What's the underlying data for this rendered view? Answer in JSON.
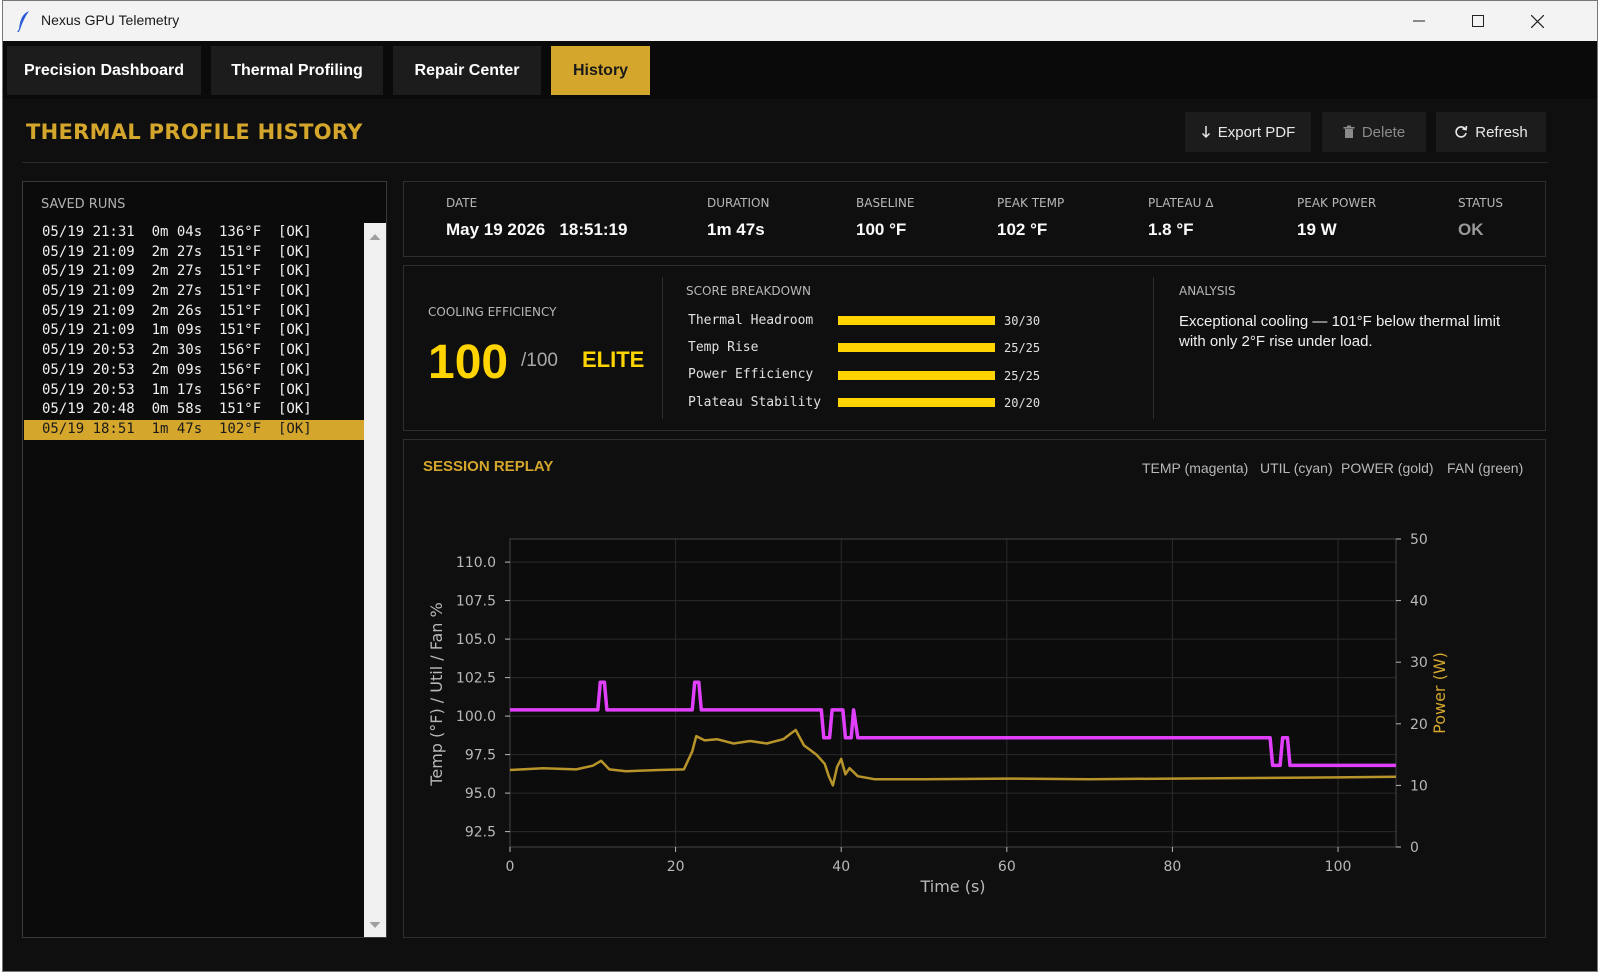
{
  "window": {
    "title": "Nexus GPU Telemetry"
  },
  "tabs": [
    {
      "label": "Precision Dashboard"
    },
    {
      "label": "Thermal Profiling"
    },
    {
      "label": "Repair Center"
    },
    {
      "label": "History",
      "active": true
    }
  ],
  "page": {
    "title": "THERMAL PROFILE HISTORY"
  },
  "header_buttons": {
    "export": {
      "icon": "download-arrow-icon",
      "label": "Export PDF"
    },
    "delete": {
      "icon": "trash-icon",
      "label": "Delete",
      "disabled": true
    },
    "refresh": {
      "icon": "refresh-icon",
      "label": "Refresh"
    }
  },
  "saved_runs": {
    "label": "SAVED RUNS",
    "rows": [
      "05/19 21:31  0m 04s  136°F  [OK]",
      "05/19 21:09  2m 27s  151°F  [OK]",
      "05/19 21:09  2m 27s  151°F  [OK]",
      "05/19 21:09  2m 27s  151°F  [OK]",
      "05/19 21:09  2m 26s  151°F  [OK]",
      "05/19 21:09  1m 09s  151°F  [OK]",
      "05/19 20:53  2m 30s  156°F  [OK]",
      "05/19 20:53  2m 09s  156°F  [OK]",
      "05/19 20:53  1m 17s  156°F  [OK]",
      "05/19 20:48  0m 58s  151°F  [OK]",
      "05/19 18:51  1m 47s  102°F  [OK]"
    ],
    "selected_index": 10
  },
  "summary": {
    "date": {
      "label": "DATE",
      "value": "May 19 2026   18:51:19"
    },
    "duration": {
      "label": "DURATION",
      "value": "1m 47s"
    },
    "baseline": {
      "label": "BASELINE",
      "value": "100 °F"
    },
    "peak_temp": {
      "label": "PEAK TEMP",
      "value": "102 °F"
    },
    "plateau": {
      "label": "PLATEAU Δ",
      "value": "1.8 °F"
    },
    "peak_power": {
      "label": "PEAK POWER",
      "value": "19 W"
    },
    "status": {
      "label": "STATUS",
      "value": "OK"
    }
  },
  "score": {
    "label": "COOLING EFFICIENCY",
    "value": "100",
    "max": "/100",
    "grade": "ELITE",
    "breakdown_label": "SCORE BREAKDOWN",
    "breakdown": [
      {
        "name": "Thermal Headroom",
        "score": "30/30",
        "fraction": 1.0
      },
      {
        "name": "Temp Rise",
        "score": "25/25",
        "fraction": 1.0
      },
      {
        "name": "Power Efficiency",
        "score": "25/25",
        "fraction": 1.0
      },
      {
        "name": "Plateau Stability",
        "score": "20/20",
        "fraction": 1.0
      }
    ]
  },
  "analysis": {
    "label": "ANALYSIS",
    "text": "Exceptional cooling — 101°F below thermal limit with only 2°F rise under load."
  },
  "replay": {
    "title": "SESSION REPLAY",
    "legend": [
      "TEMP (magenta)",
      "UTIL (cyan)",
      "POWER (gold)",
      "FAN (green)"
    ]
  },
  "colors": {
    "accent": "#d4a72c",
    "score": "#ffd400",
    "temp": "#e040fb",
    "power": "#b8952a"
  },
  "chart_data": {
    "type": "line",
    "xlabel": "Time (s)",
    "ylabel": "Temp (°F) / Util / Fan %",
    "y2label": "Power (W)",
    "xlim": [
      0,
      107
    ],
    "ylim": [
      91.5,
      111.5
    ],
    "y2lim": [
      0,
      50
    ],
    "xticks": [
      0,
      20,
      40,
      60,
      80,
      100
    ],
    "yticks": [
      92.5,
      95.0,
      97.5,
      100.0,
      102.5,
      105.0,
      107.5,
      110.0
    ],
    "y2ticks": [
      0,
      10,
      20,
      30,
      40,
      50
    ],
    "grid": true,
    "series": [
      {
        "name": "TEMP",
        "axis": "left",
        "x": [
          0,
          10.6,
          10.9,
          11.4,
          11.7,
          22.0,
          22.3,
          22.8,
          23.1,
          37.6,
          37.9,
          38.6,
          38.9,
          40.2,
          40.5,
          41.2,
          41.5,
          42.0,
          42.3,
          91.8,
          92.1,
          93.0,
          93.3,
          93.9,
          94.2,
          94.9,
          95.2,
          107
        ],
        "y": [
          100.4,
          100.4,
          102.2,
          102.2,
          100.4,
          100.4,
          102.2,
          102.2,
          100.4,
          100.4,
          98.6,
          98.6,
          100.4,
          100.4,
          98.6,
          98.6,
          100.4,
          98.6,
          98.6,
          98.6,
          96.8,
          96.8,
          98.6,
          98.6,
          96.8,
          96.8,
          96.8,
          96.8
        ]
      },
      {
        "name": "POWER",
        "axis": "right",
        "x": [
          0,
          4,
          8,
          10,
          11,
          12,
          14,
          18,
          21,
          22,
          22.5,
          23.5,
          25,
          27,
          29,
          31,
          33,
          34,
          34.5,
          35.5,
          37,
          38,
          38.5,
          39,
          39.5,
          40,
          40.5,
          41,
          42,
          44,
          50,
          60,
          70,
          80,
          90,
          100,
          107
        ],
        "y": [
          12.5,
          12.8,
          12.6,
          13.2,
          14.0,
          12.6,
          12.3,
          12.5,
          12.6,
          15.5,
          18.0,
          17.3,
          17.5,
          16.8,
          17.2,
          16.8,
          17.5,
          18.5,
          19.0,
          16.5,
          15.0,
          13.5,
          11.5,
          10.0,
          13.0,
          14.3,
          11.8,
          12.8,
          11.5,
          11.0,
          11.0,
          11.1,
          11.0,
          11.1,
          11.2,
          11.3,
          11.4
        ]
      }
    ]
  }
}
